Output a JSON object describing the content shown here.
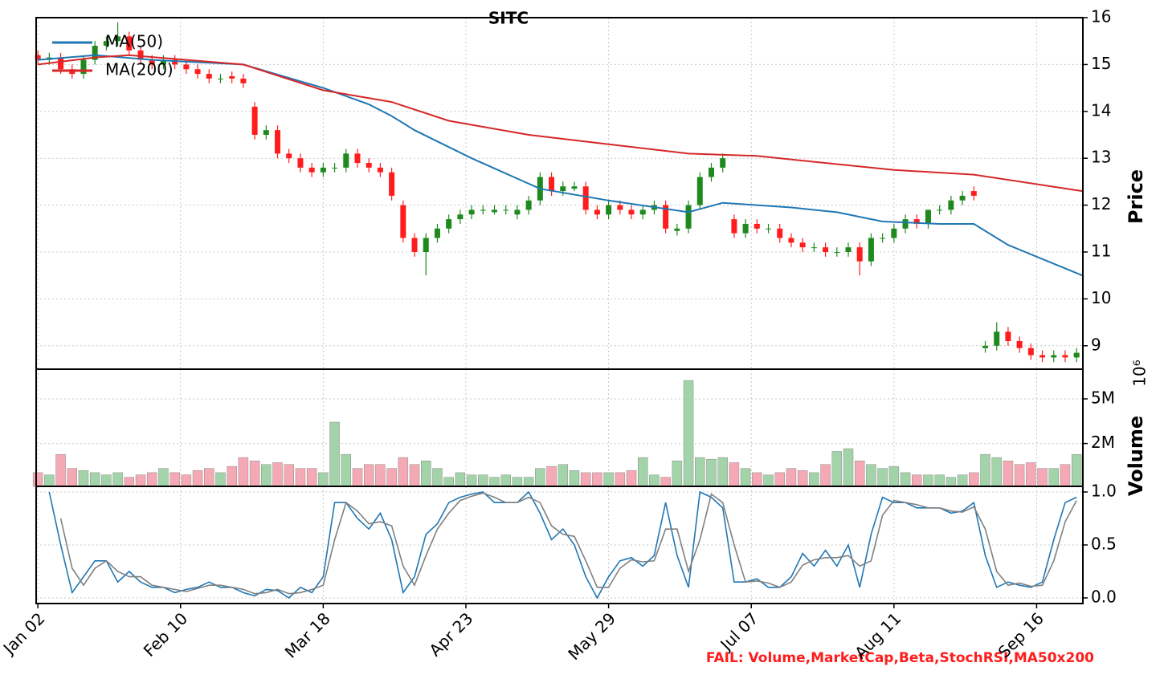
{
  "chart_data": [
    {
      "type": "candlestick",
      "title": "SITC",
      "y_label": "Price",
      "grid": true,
      "legend": "upper left",
      "up_color": "#1e8a1e",
      "down_color": "#ff1c1c",
      "x": [
        0,
        2,
        4,
        6,
        8,
        10,
        12,
        14,
        16,
        18,
        20,
        22,
        24,
        26,
        28,
        30,
        32,
        34,
        36,
        38,
        40,
        42,
        44,
        46,
        48,
        50,
        52,
        54,
        56,
        58,
        60,
        62,
        64,
        66,
        68,
        70,
        72,
        74,
        76,
        78,
        80,
        82,
        84,
        86,
        88,
        90,
        92,
        94,
        96,
        98,
        100,
        102,
        104,
        106,
        108,
        110,
        112,
        114,
        116,
        118,
        120,
        122,
        124,
        126,
        128,
        130,
        132,
        134,
        136,
        138,
        140,
        142,
        144,
        146,
        148,
        150,
        152,
        154,
        156,
        158,
        160,
        162,
        164,
        166,
        168,
        170,
        172,
        174,
        176,
        178,
        180,
        182
      ],
      "open": [
        15.2,
        15.1,
        15.15,
        14.9,
        14.8,
        15.1,
        15.4,
        15.5,
        15.6,
        15.3,
        15.1,
        15.0,
        15.1,
        15.0,
        14.9,
        14.8,
        14.7,
        14.75,
        14.7,
        14.1,
        13.5,
        13.6,
        13.1,
        13.0,
        12.8,
        12.7,
        12.8,
        12.8,
        13.1,
        12.9,
        12.8,
        12.7,
        12.0,
        11.3,
        11.0,
        11.3,
        11.5,
        11.7,
        11.8,
        11.9,
        11.85,
        11.9,
        11.8,
        11.9,
        12.1,
        12.6,
        12.3,
        12.35,
        12.4,
        11.9,
        11.8,
        12.0,
        11.9,
        11.8,
        11.9,
        12.0,
        11.45,
        11.5,
        12.0,
        12.6,
        12.8,
        11.7,
        11.4,
        11.6,
        11.5,
        11.5,
        11.3,
        11.2,
        11.1,
        11.1,
        11.0,
        11.0,
        11.1,
        10.8,
        11.3,
        11.3,
        11.5,
        11.7,
        11.6,
        11.9,
        11.9,
        12.1,
        12.3,
        8.95,
        9.0,
        9.3,
        9.1,
        8.95,
        8.8,
        8.75,
        8.8,
        8.75
      ],
      "high": [
        15.3,
        15.25,
        15.25,
        15.0,
        15.2,
        15.5,
        15.6,
        15.9,
        15.7,
        15.4,
        15.2,
        15.2,
        15.2,
        15.1,
        15.0,
        14.9,
        14.8,
        14.85,
        14.8,
        14.2,
        13.7,
        13.7,
        13.2,
        13.1,
        12.9,
        12.9,
        12.9,
        13.2,
        13.2,
        13.0,
        12.9,
        12.8,
        12.1,
        11.4,
        11.4,
        11.6,
        11.8,
        11.9,
        12.0,
        12.0,
        12.0,
        12.0,
        12.0,
        12.2,
        12.7,
        12.7,
        12.5,
        12.5,
        12.5,
        12.0,
        12.1,
        12.1,
        12.0,
        12.0,
        12.1,
        12.1,
        11.6,
        12.1,
        12.7,
        12.9,
        13.1,
        11.8,
        11.7,
        11.7,
        11.6,
        11.6,
        11.4,
        11.3,
        11.2,
        11.2,
        11.1,
        11.2,
        11.2,
        11.4,
        11.4,
        11.6,
        11.8,
        11.8,
        11.9,
        12.0,
        12.2,
        12.3,
        12.4,
        9.1,
        9.5,
        9.4,
        9.2,
        9.05,
        8.9,
        8.9,
        8.9,
        8.95
      ],
      "low": [
        15.0,
        15.0,
        14.8,
        14.7,
        14.7,
        15.0,
        15.3,
        15.4,
        15.2,
        15.0,
        14.9,
        14.9,
        14.9,
        14.8,
        14.7,
        14.6,
        14.6,
        14.6,
        14.5,
        13.4,
        13.4,
        13.0,
        12.9,
        12.7,
        12.6,
        12.6,
        12.7,
        12.7,
        12.8,
        12.7,
        12.6,
        12.1,
        11.2,
        10.9,
        10.5,
        11.2,
        11.4,
        11.6,
        11.7,
        11.8,
        11.8,
        11.8,
        11.7,
        11.8,
        12.0,
        12.2,
        12.2,
        12.3,
        11.8,
        11.7,
        11.7,
        11.8,
        11.7,
        11.7,
        11.8,
        11.4,
        11.35,
        11.4,
        11.9,
        12.5,
        12.7,
        11.3,
        11.3,
        11.4,
        11.4,
        11.2,
        11.1,
        11.0,
        11.0,
        10.9,
        10.9,
        10.9,
        10.5,
        10.7,
        11.2,
        11.2,
        11.4,
        11.5,
        11.5,
        11.8,
        11.8,
        12.0,
        12.1,
        8.85,
        8.9,
        9.0,
        8.85,
        8.7,
        8.65,
        8.65,
        8.65,
        8.65
      ],
      "close": [
        15.1,
        15.15,
        14.9,
        14.8,
        15.1,
        15.4,
        15.5,
        15.6,
        15.3,
        15.1,
        15.0,
        15.1,
        15.0,
        14.9,
        14.8,
        14.7,
        14.7,
        14.7,
        14.6,
        13.5,
        13.6,
        13.1,
        13.0,
        12.8,
        12.7,
        12.8,
        12.8,
        13.1,
        12.9,
        12.8,
        12.7,
        12.2,
        11.3,
        11.0,
        11.3,
        11.5,
        11.7,
        11.8,
        11.9,
        11.9,
        11.9,
        11.9,
        11.9,
        12.1,
        12.6,
        12.3,
        12.4,
        12.4,
        11.9,
        11.8,
        12.0,
        11.9,
        11.8,
        11.9,
        12.0,
        11.5,
        11.5,
        12.0,
        12.6,
        12.8,
        13.0,
        11.4,
        11.6,
        11.5,
        11.5,
        11.3,
        11.2,
        11.1,
        11.1,
        11.0,
        11.0,
        11.1,
        10.8,
        11.3,
        11.3,
        11.5,
        11.7,
        11.6,
        11.9,
        11.9,
        12.1,
        12.2,
        12.2,
        9.0,
        9.3,
        9.1,
        8.95,
        8.8,
        8.75,
        8.8,
        8.75,
        8.85
      ],
      "series": [
        {
          "name": "MA(50)",
          "color": "#1f77b4",
          "x": [
            0,
            10,
            20,
            36,
            50,
            58,
            62,
            66,
            76,
            88,
            100,
            114,
            120,
            132,
            140,
            148,
            158,
            164,
            170,
            183
          ],
          "values": [
            15.1,
            15.2,
            15.1,
            15.0,
            14.5,
            14.15,
            13.9,
            13.6,
            13.0,
            12.35,
            12.1,
            11.85,
            12.05,
            11.95,
            11.85,
            11.65,
            11.6,
            11.6,
            11.15,
            10.5
          ]
        },
        {
          "name": "MA(200)",
          "color": "#d62728",
          "x": [
            0,
            10,
            16,
            36,
            50,
            62,
            72,
            86,
            100,
            114,
            126,
            150,
            164,
            183
          ],
          "values": [
            15.0,
            15.15,
            15.2,
            15.0,
            14.45,
            14.2,
            13.8,
            13.5,
            13.3,
            13.1,
            13.05,
            12.75,
            12.65,
            12.3
          ]
        }
      ],
      "ylim": [
        8.5,
        16
      ],
      "yticks": [
        9,
        10,
        11,
        12,
        13,
        14,
        15,
        16
      ]
    },
    {
      "type": "bar",
      "y_label": "Volume",
      "offset_label": "10⁶",
      "log_y": true,
      "grid": true,
      "up_color": "#a3d3a9",
      "down_color": "#f5a9b4",
      "values": [
        1.1,
        1.05,
        1.6,
        1.2,
        1.15,
        1.1,
        1.05,
        1.1,
        1.0,
        1.05,
        1.1,
        1.2,
        1.1,
        1.05,
        1.15,
        1.2,
        1.1,
        1.25,
        1.5,
        1.4,
        1.3,
        1.35,
        1.3,
        1.2,
        1.2,
        1.1,
        3.1,
        1.6,
        1.2,
        1.3,
        1.3,
        1.2,
        1.5,
        1.3,
        1.4,
        1.2,
        1.0,
        1.1,
        1.05,
        1.05,
        1.0,
        1.05,
        1.0,
        1.0,
        1.2,
        1.25,
        1.3,
        1.15,
        1.1,
        1.1,
        1.1,
        1.1,
        1.15,
        1.5,
        1.05,
        1.0,
        1.4,
        7.3,
        1.5,
        1.45,
        1.5,
        1.35,
        1.2,
        1.1,
        1.05,
        1.1,
        1.2,
        1.15,
        1.1,
        1.3,
        1.7,
        1.8,
        1.4,
        1.3,
        1.2,
        1.25,
        1.1,
        1.05,
        1.05,
        1.05,
        1.0,
        1.05,
        1.1,
        1.6,
        1.5,
        1.4,
        1.3,
        1.35,
        1.2,
        1.2,
        1.3,
        1.6
      ],
      "ylim": [
        0.83,
        9.2
      ],
      "yticks": [
        {
          "value": 2,
          "label": "2M"
        },
        {
          "value": 5,
          "label": "5M"
        }
      ]
    },
    {
      "type": "line",
      "grid": true,
      "series": [
        {
          "color": "#1f77b4",
          "values": [
            null,
            1.0,
            0.5,
            0.05,
            0.2,
            0.35,
            0.35,
            0.15,
            0.25,
            0.15,
            0.1,
            0.1,
            0.05,
            0.08,
            0.1,
            0.15,
            0.1,
            0.1,
            0.05,
            0.02,
            0.08,
            0.07,
            0.0,
            0.1,
            0.05,
            0.2,
            0.9,
            0.9,
            0.75,
            0.65,
            0.8,
            0.55,
            0.05,
            0.2,
            0.6,
            0.7,
            0.9,
            0.95,
            0.98,
            1.0,
            0.9,
            0.9,
            0.9,
            1.0,
            0.8,
            0.55,
            0.65,
            0.5,
            0.2,
            0.0,
            0.2,
            0.35,
            0.38,
            0.3,
            0.4,
            0.9,
            0.4,
            0.1,
            1.0,
            0.95,
            0.85,
            0.15,
            0.15,
            0.18,
            0.1,
            0.1,
            0.2,
            0.42,
            0.3,
            0.45,
            0.3,
            0.5,
            0.1,
            0.6,
            0.95,
            0.9,
            0.9,
            0.85,
            0.85,
            0.85,
            0.8,
            0.82,
            0.9,
            0.4,
            0.1,
            0.15,
            0.12,
            0.1,
            0.15,
            0.55,
            0.9,
            0.95
          ]
        },
        {
          "color": "#808080",
          "values": [
            null,
            null,
            0.75,
            0.28,
            0.12,
            0.28,
            0.35,
            0.25,
            0.2,
            0.2,
            0.12,
            0.1,
            0.08,
            0.06,
            0.09,
            0.12,
            0.12,
            0.1,
            0.08,
            0.04,
            0.05,
            0.08,
            0.04,
            0.05,
            0.08,
            0.12,
            0.55,
            0.9,
            0.82,
            0.7,
            0.72,
            0.68,
            0.3,
            0.12,
            0.4,
            0.65,
            0.8,
            0.92,
            0.96,
            0.99,
            0.95,
            0.9,
            0.9,
            0.95,
            0.9,
            0.68,
            0.6,
            0.58,
            0.35,
            0.1,
            0.1,
            0.28,
            0.36,
            0.34,
            0.35,
            0.65,
            0.65,
            0.25,
            0.55,
            0.98,
            0.9,
            0.5,
            0.15,
            0.16,
            0.14,
            0.1,
            0.15,
            0.31,
            0.36,
            0.38,
            0.38,
            0.4,
            0.3,
            0.35,
            0.78,
            0.92,
            0.9,
            0.88,
            0.85,
            0.85,
            0.82,
            0.81,
            0.86,
            0.65,
            0.25,
            0.12,
            0.14,
            0.11,
            0.12,
            0.35,
            0.72,
            0.92
          ]
        }
      ],
      "ylim": [
        -0.053,
        1.053
      ],
      "yticks": [
        {
          "value": 0,
          "label": "0.0"
        },
        {
          "value": 0.5,
          "label": "0.5"
        },
        {
          "value": 1,
          "label": "1.0"
        }
      ],
      "xlim": [
        -0.3,
        183.1
      ],
      "xticks": [
        {
          "value": 0,
          "label": "Jan 02"
        },
        {
          "value": 25,
          "label": "Feb 10"
        },
        {
          "value": 50,
          "label": "Mar 18"
        },
        {
          "value": 75,
          "label": "Apr 23"
        },
        {
          "value": 100,
          "label": "May 29"
        },
        {
          "value": 125,
          "label": "Jul 07"
        },
        {
          "value": 150,
          "label": "Aug 11"
        },
        {
          "value": 175,
          "label": "Sep 16"
        }
      ]
    }
  ],
  "footer": "FAIL: Volume,MarketCap,Beta,StochRSI,MA50x200"
}
